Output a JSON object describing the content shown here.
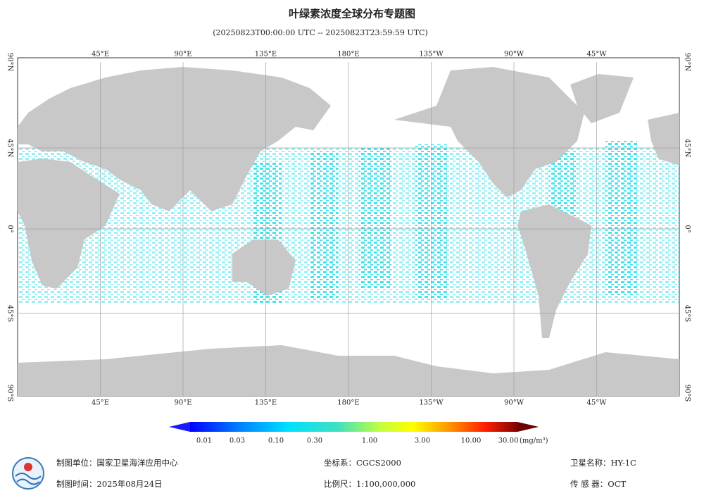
{
  "title": "叶绿素浓度全球分布专题图",
  "subtitle": "(20250823T00:00:00 UTC -- 20250823T23:59:59 UTC)",
  "map": {
    "lon_labels": [
      "45°E",
      "90°E",
      "135°E",
      "180°E",
      "135°W",
      "90°W",
      "45°W"
    ],
    "lat_labels": [
      "90°N",
      "45°N",
      "0°",
      "45°S",
      "90°S"
    ]
  },
  "colorbar": {
    "labels": [
      "0.01",
      "0.03",
      "0.10",
      "0.30",
      "1.00",
      "3.00",
      "10.00",
      "30.00"
    ],
    "unit": "(mg/m³)"
  },
  "footer": {
    "unit": "制图单位：国家卫星海洋应用中心",
    "date": "制图时间：2025年08月24日",
    "crs": "坐标系：CGCS2000",
    "scale": "比例尺：1:100,000,000",
    "satellite": "卫星名称：HY-1C",
    "sensor": "传 感 器：OCT"
  }
}
